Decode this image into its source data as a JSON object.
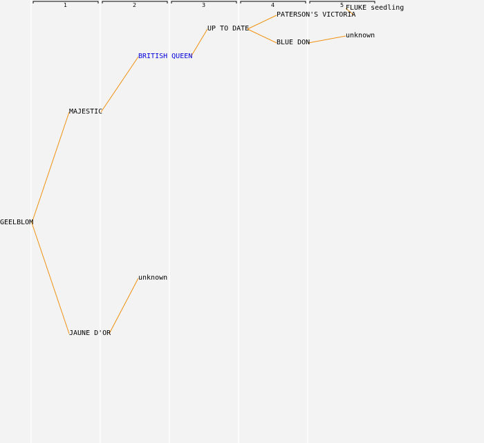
{
  "colors": {
    "background": "#f3f3f3",
    "column_line": "#ffffff",
    "connector": "#f0900e",
    "bracket": "#000000",
    "node_text": "#000000",
    "highlight_text": "#0000dd"
  },
  "generations": [
    "1",
    "2",
    "3",
    "4",
    "5"
  ],
  "tree": {
    "root": "GEELBLOM",
    "nodes": [
      {
        "id": "geelblom",
        "label": "GEELBLOM",
        "generation": 0,
        "parent": null,
        "highlight": false
      },
      {
        "id": "majestic",
        "label": "MAJESTIC",
        "generation": 1,
        "parent": "geelblom",
        "highlight": false
      },
      {
        "id": "jaune-dor",
        "label": "JAUNE D'OR",
        "generation": 1,
        "parent": "geelblom",
        "highlight": false
      },
      {
        "id": "british-queen",
        "label": "BRITISH QUEEN",
        "generation": 2,
        "parent": "majestic",
        "highlight": true
      },
      {
        "id": "unknown-jaune",
        "label": "unknown",
        "generation": 2,
        "parent": "jaune-dor",
        "highlight": false
      },
      {
        "id": "up-to-date",
        "label": "UP TO DATE",
        "generation": 3,
        "parent": "british-queen",
        "highlight": false
      },
      {
        "id": "patersons-victoria",
        "label": "PATERSON'S VICTORIA",
        "generation": 4,
        "parent": "up-to-date",
        "highlight": false
      },
      {
        "id": "blue-don",
        "label": "BLUE DON",
        "generation": 4,
        "parent": "up-to-date",
        "highlight": false
      },
      {
        "id": "fluke-seedling",
        "label": "FLUKE seedling",
        "generation": 5,
        "parent": "patersons-victoria",
        "highlight": false
      },
      {
        "id": "unknown-bluedon",
        "label": "unknown",
        "generation": 5,
        "parent": "blue-don",
        "highlight": false
      }
    ]
  }
}
